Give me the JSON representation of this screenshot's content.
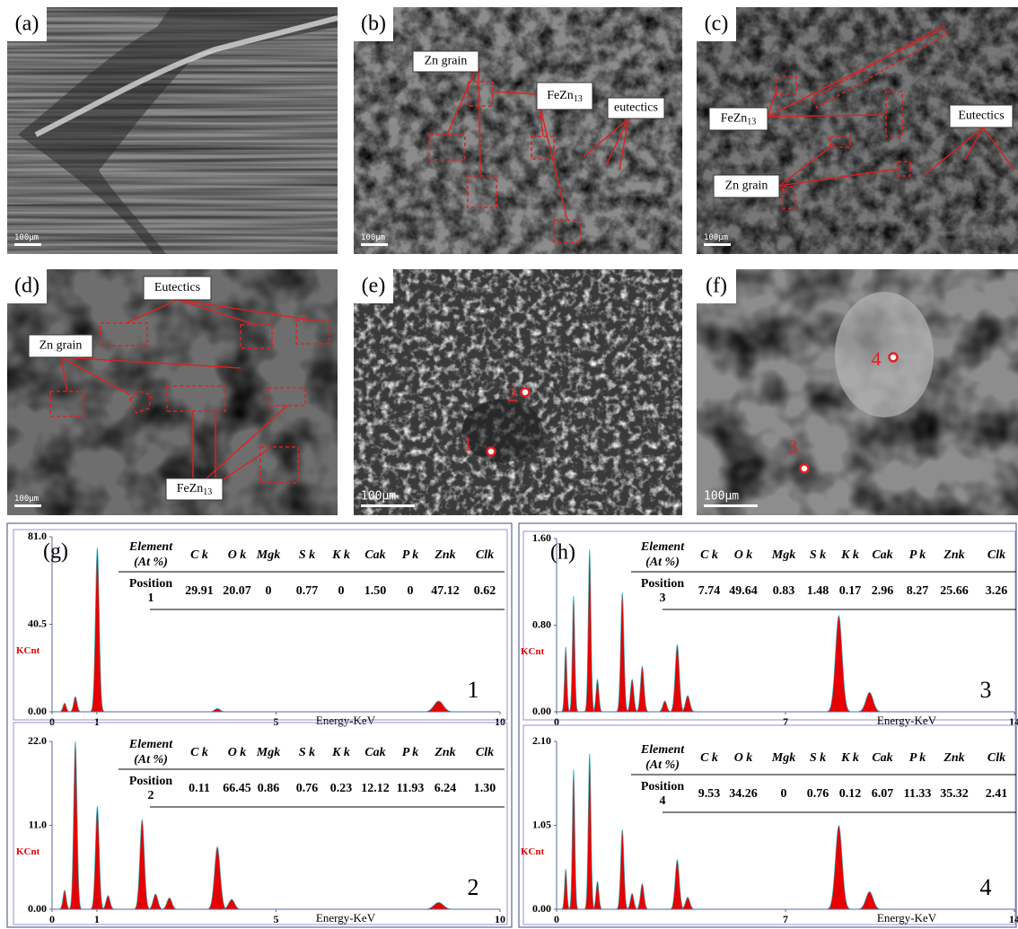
{
  "micrographs": [
    {
      "label": "(a)",
      "scale_bar": "100μm"
    },
    {
      "label": "(b)",
      "scale_bar": "100μm",
      "annotations": [
        {
          "text": "Zn grain"
        },
        {
          "text": "FeZn",
          "subscript": "13"
        },
        {
          "text": "eutectics"
        }
      ]
    },
    {
      "label": "(c)",
      "scale_bar": "100μm",
      "annotations": [
        {
          "text": "FeZn",
          "subscript": "13"
        },
        {
          "text": "Zn grain"
        },
        {
          "text": "Eutectics"
        }
      ]
    },
    {
      "label": "(d)",
      "scale_bar": "100μm",
      "annotations": [
        {
          "text": "Eutectics"
        },
        {
          "text": "Zn grain"
        },
        {
          "text": "FeZn",
          "subscript": "13"
        }
      ]
    },
    {
      "label": "(e)",
      "scale_bar": "100μm",
      "points": [
        "2",
        "1"
      ]
    },
    {
      "label": "(f)",
      "scale_bar": "100μm",
      "points": [
        "4",
        "3"
      ]
    }
  ],
  "spectra": [
    {
      "label": "(g)",
      "charts": [
        {
          "number": "1",
          "y_label": "KCnt",
          "x_label": "Energy-KeV",
          "xlim": [
            0,
            10
          ],
          "xticks": [
            0,
            1,
            5,
            10
          ],
          "ylim": [
            0,
            81
          ],
          "yticks": [
            {
              "value": 0,
              "label": "0.00"
            },
            40.5,
            {
              "value": 81,
              "label": "81.0"
            }
          ],
          "peaks": [
            {
              "x": 0.28,
              "y": 4
            },
            {
              "x": 0.52,
              "y": 7
            },
            {
              "x": 1.01,
              "y": 76
            },
            {
              "x": 3.69,
              "y": 1.5
            },
            {
              "x": 8.63,
              "y": 5
            }
          ],
          "table": {
            "element": [
              "Element",
              "(At %)"
            ],
            "columns": [
              "C k",
              "O k",
              "Mgk",
              "S k",
              "K k",
              "Cak",
              "P k",
              "Znk",
              "Clk"
            ],
            "position": [
              "Position",
              "1"
            ],
            "values": [
              "29.91",
              "20.07",
              "0",
              "0.77",
              "0",
              "1.50",
              "0",
              "47.12",
              "0.62"
            ]
          }
        },
        {
          "number": "2",
          "y_label": "KCnt",
          "x_label": "Energy-KeV",
          "xlim": [
            0,
            10
          ],
          "xticks": [
            0,
            1,
            5,
            10
          ],
          "ylim": [
            0,
            22
          ],
          "yticks": [
            {
              "value": 0,
              "label": "0.00"
            },
            {
              "value": 11,
              "label": "11.0"
            },
            {
              "value": 22,
              "label": "22.0"
            }
          ],
          "peaks": [
            {
              "x": 0.28,
              "y": 2.5
            },
            {
              "x": 0.52,
              "y": 22
            },
            {
              "x": 1.01,
              "y": 13.5
            },
            {
              "x": 1.25,
              "y": 1.8
            },
            {
              "x": 2.01,
              "y": 11.8
            },
            {
              "x": 2.31,
              "y": 2
            },
            {
              "x": 2.62,
              "y": 1.5
            },
            {
              "x": 3.69,
              "y": 8.2
            },
            {
              "x": 4.01,
              "y": 1.3
            },
            {
              "x": 8.63,
              "y": 0.9
            }
          ],
          "table": {
            "element": [
              "Element",
              "(At %)"
            ],
            "columns": [
              "C k",
              "O k",
              "Mgk",
              "S k",
              "K k",
              "Cak",
              "P k",
              "Znk",
              "Clk"
            ],
            "position": [
              "Position",
              "2"
            ],
            "values": [
              "0.11",
              "66.45",
              "0.86",
              "0.76",
              "0.23",
              "12.12",
              "11.93",
              "6.24",
              "1.30"
            ]
          }
        }
      ]
    },
    {
      "label": "(h)",
      "charts": [
        {
          "number": "3",
          "y_label": "KCnt",
          "x_label": "Energy-KeV",
          "xlim": [
            0,
            14
          ],
          "xticks": [
            0,
            7,
            14
          ],
          "ylim": [
            0,
            1.6
          ],
          "yticks": [
            {
              "value": 0,
              "label": "0.00"
            },
            {
              "value": 0.8,
              "label": "0.80"
            },
            {
              "value": 1.6,
              "label": "1.60"
            }
          ],
          "peaks": [
            {
              "x": 0.28,
              "y": 0.6
            },
            {
              "x": 0.52,
              "y": 1.07
            },
            {
              "x": 1.01,
              "y": 1.5
            },
            {
              "x": 1.25,
              "y": 0.3
            },
            {
              "x": 2.01,
              "y": 1.1
            },
            {
              "x": 2.31,
              "y": 0.3
            },
            {
              "x": 2.62,
              "y": 0.42
            },
            {
              "x": 3.31,
              "y": 0.1
            },
            {
              "x": 3.69,
              "y": 0.62
            },
            {
              "x": 4.01,
              "y": 0.15
            },
            {
              "x": 8.63,
              "y": 0.89
            },
            {
              "x": 9.57,
              "y": 0.18
            }
          ],
          "table": {
            "element": [
              "Element",
              "(At %)"
            ],
            "columns": [
              "C k",
              "O k",
              "Mgk",
              "S k",
              "K k",
              "Cak",
              "P k",
              "Znk",
              "Clk"
            ],
            "position": [
              "Position",
              "3"
            ],
            "values": [
              "7.74",
              "49.64",
              "0.83",
              "1.48",
              "0.17",
              "2.96",
              "8.27",
              "25.66",
              "3.26"
            ]
          }
        },
        {
          "number": "4",
          "y_label": "KCnt",
          "x_label": "Energy-KeV",
          "xlim": [
            0,
            14
          ],
          "xticks": [
            0,
            7,
            14
          ],
          "ylim": [
            0,
            2.1
          ],
          "yticks": [
            {
              "value": 0,
              "label": "0.00"
            },
            {
              "value": 1.05,
              "label": "1.05"
            },
            {
              "value": 2.1,
              "label": "2.10"
            }
          ],
          "peaks": [
            {
              "x": 0.28,
              "y": 0.5
            },
            {
              "x": 0.52,
              "y": 1.75
            },
            {
              "x": 1.01,
              "y": 1.95
            },
            {
              "x": 1.25,
              "y": 0.35
            },
            {
              "x": 2.01,
              "y": 1.0
            },
            {
              "x": 2.31,
              "y": 0.2
            },
            {
              "x": 2.62,
              "y": 0.32
            },
            {
              "x": 3.69,
              "y": 0.62
            },
            {
              "x": 4.01,
              "y": 0.15
            },
            {
              "x": 8.63,
              "y": 1.05
            },
            {
              "x": 9.57,
              "y": 0.22
            }
          ],
          "table": {
            "element": [
              "Element",
              "(At %)"
            ],
            "columns": [
              "C k",
              "O k",
              "Mgk",
              "S k",
              "K k",
              "Cak",
              "P k",
              "Znk",
              "Clk"
            ],
            "position": [
              "Position",
              "4"
            ],
            "values": [
              "9.53",
              "34.26",
              "0",
              "0.76",
              "0.12",
              "6.07",
              "11.33",
              "35.32",
              "2.41"
            ]
          }
        }
      ]
    }
  ]
}
